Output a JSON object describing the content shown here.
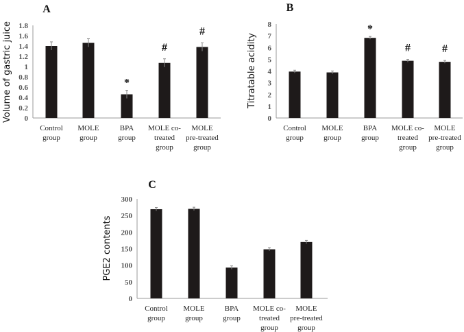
{
  "chart_data": [
    {
      "type": "bar",
      "panel_label": "A",
      "ylabel": "Volume of gastric juice",
      "categories": [
        [
          "Control",
          "group"
        ],
        [
          "MOLE",
          "group"
        ],
        [
          "BPA",
          "group"
        ],
        [
          "MOLE co-",
          "treated",
          "group"
        ],
        [
          "MOLE",
          "pre-treated",
          "group"
        ]
      ],
      "values": [
        1.4,
        1.46,
        0.46,
        1.07,
        1.38
      ],
      "errors": [
        0.08,
        0.08,
        0.08,
        0.08,
        0.08
      ],
      "annotations": [
        "",
        "",
        "*",
        "#",
        "#"
      ],
      "ylim": [
        0,
        1.8
      ],
      "yticks": [
        0,
        0.2,
        0.4,
        0.6,
        0.8,
        1,
        1.2,
        1.4,
        1.6,
        1.8
      ],
      "ytick_labels": [
        "0",
        "0.2",
        "0.4",
        "0.6",
        "0.8",
        "1",
        "1.2",
        "1.4",
        "1.6",
        "1.8"
      ],
      "bar_color": "#1e1a1a",
      "grid": false
    },
    {
      "type": "bar",
      "panel_label": "B",
      "ylabel": "Titratable acidity",
      "categories": [
        [
          "Control",
          "group"
        ],
        [
          "MOLE",
          "group"
        ],
        [
          "BPA",
          "group"
        ],
        [
          "MOLE co-",
          "treated",
          "group"
        ],
        [
          "MOLE",
          "pre-treated",
          "group"
        ]
      ],
      "values": [
        3.95,
        3.88,
        6.82,
        4.87,
        4.78
      ],
      "errors": [
        0.12,
        0.12,
        0.12,
        0.12,
        0.12
      ],
      "annotations": [
        "",
        "",
        "*",
        "#",
        "#"
      ],
      "ylim": [
        0,
        8
      ],
      "yticks": [
        0,
        1,
        2,
        3,
        4,
        5,
        6,
        7,
        8
      ],
      "ytick_labels": [
        "0",
        "1",
        "2",
        "3",
        "4",
        "5",
        "6",
        "7",
        "8"
      ],
      "bar_color": "#1e1a1a",
      "grid": false
    },
    {
      "type": "bar",
      "panel_label": "C",
      "ylabel": "PGE2 contents",
      "categories": [
        [
          "Control",
          "group"
        ],
        [
          "MOLE",
          "group"
        ],
        [
          "BPA",
          "group"
        ],
        [
          "MOLE co-",
          "treated",
          "group"
        ],
        [
          "MOLE",
          "pre-treated",
          "group"
        ]
      ],
      "values": [
        269,
        270,
        93,
        148,
        170
      ],
      "errors": [
        5,
        5,
        5,
        5,
        5
      ],
      "annotations": [
        "",
        "",
        "",
        "",
        ""
      ],
      "ylim": [
        0,
        300
      ],
      "yticks": [
        0,
        50,
        100,
        150,
        200,
        250,
        300
      ],
      "ytick_labels": [
        "0",
        "50",
        "100",
        "150",
        "200",
        "250",
        "300"
      ],
      "bar_color": "#1e1a1a",
      "grid": false
    }
  ]
}
